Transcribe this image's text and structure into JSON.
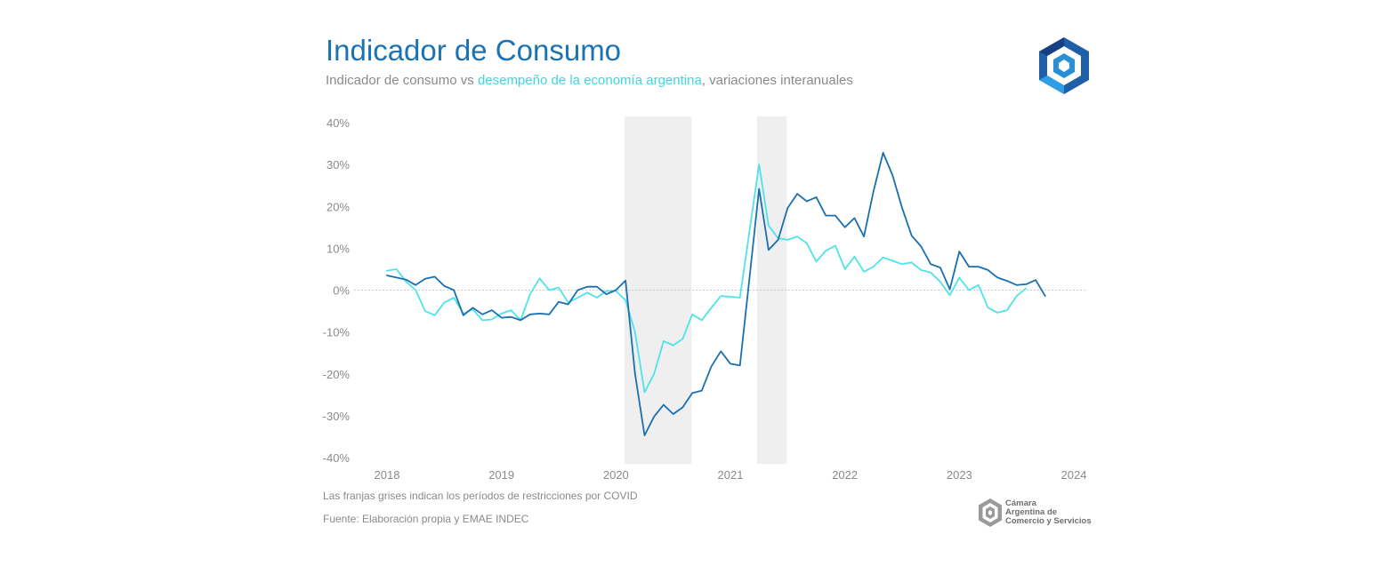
{
  "header": {
    "title": "Indicador de Consumo",
    "subtitle_part1": "Indicador de consumo vs ",
    "subtitle_highlight": "desempeño de la economía argentina",
    "subtitle_part2": ", variaciones interanuales"
  },
  "footer": {
    "note": "Las franjas grises indican los períodos de restricciones por COVID",
    "source": "Fuente: Elaboración propia y EMAE INDEC"
  },
  "brand": {
    "line1": "Cámara",
    "line2": "Argentina de",
    "line3": "Comercio y Servicios"
  },
  "colors": {
    "dark_series": "#1a6fae",
    "light_series": "#4ee3ea",
    "shade": "#efefef",
    "axis_text": "#8a8a8a",
    "zero_line": "#bbbbbb",
    "title": "#1a73b5"
  },
  "chart_data": {
    "type": "line",
    "title": "",
    "xlabel": "",
    "ylabel": "",
    "x_unit": "months since Jan 2018",
    "xlim": [
      0,
      72
    ],
    "ylim": [
      -40,
      40
    ],
    "yticks": [
      40,
      30,
      20,
      10,
      0,
      -10,
      -20,
      -30,
      -40
    ],
    "ytick_labels": [
      "40%",
      "30%",
      "20%",
      "10%",
      "0%",
      "-10%",
      "-20%",
      "-30%",
      "-40%"
    ],
    "xticks": [
      0,
      12,
      24,
      36,
      48,
      60,
      72
    ],
    "xtick_labels": [
      "2018",
      "2019",
      "2020",
      "2021",
      "2022",
      "2023",
      "2024"
    ],
    "shaded_ranges": [
      [
        24.9,
        31.9
      ],
      [
        38.8,
        41.9
      ]
    ],
    "grid": false,
    "series": [
      {
        "name": "",
        "color": "#1a6fae",
        "x_start": 0,
        "values": [
          3.5,
          3.0,
          2.5,
          1.2,
          2.7,
          3.2,
          1.0,
          0.0,
          -6.0,
          -4.2,
          -5.8,
          -4.8,
          -6.6,
          -6.4,
          -7.2,
          -5.8,
          -5.6,
          -5.8,
          -2.8,
          -3.4,
          0.0,
          0.8,
          0.8,
          -1.0,
          0.0,
          2.3,
          -20.0,
          -34.7,
          -30.2,
          -27.4,
          -29.6,
          -28.0,
          -24.6,
          -24.0,
          -18.2,
          -14.6,
          -17.6,
          -18.0,
          2.8,
          24.2,
          9.6,
          12.0,
          19.6,
          23.0,
          21.2,
          22.2,
          17.8,
          17.8,
          15.0,
          17.2,
          12.8,
          23.6,
          32.8,
          27.4,
          19.6,
          13.0,
          10.4,
          6.2,
          5.4,
          0.2,
          9.2,
          5.6,
          5.6,
          4.8,
          3.0,
          2.2,
          1.2,
          1.4,
          2.4,
          -1.4
        ]
      },
      {
        "name": "",
        "color": "#4ee3ea",
        "x_start": 0,
        "values": [
          4.6,
          5.0,
          2.0,
          0.0,
          -5.0,
          -6.0,
          -3.0,
          -1.8,
          -5.6,
          -4.6,
          -7.2,
          -7.0,
          -5.6,
          -4.8,
          -7.2,
          -1.0,
          2.8,
          0.0,
          0.6,
          -3.0,
          -1.8,
          -0.6,
          -1.8,
          -0.2,
          -0.2,
          -2.4,
          -10.0,
          -24.4,
          -20.0,
          -12.2,
          -13.2,
          -11.6,
          -5.8,
          -7.2,
          -4.2,
          -1.4,
          -1.6,
          -1.8,
          14.0,
          30.0,
          15.4,
          12.4,
          12.0,
          12.8,
          11.2,
          6.8,
          9.4,
          10.6,
          5.0,
          8.0,
          4.4,
          5.6,
          7.8,
          7.0,
          6.2,
          6.6,
          4.8,
          4.2,
          2.0,
          -1.2,
          3.0,
          0.0,
          1.2,
          -4.2,
          -5.4,
          -4.8,
          -1.4,
          0.4
        ]
      }
    ]
  }
}
